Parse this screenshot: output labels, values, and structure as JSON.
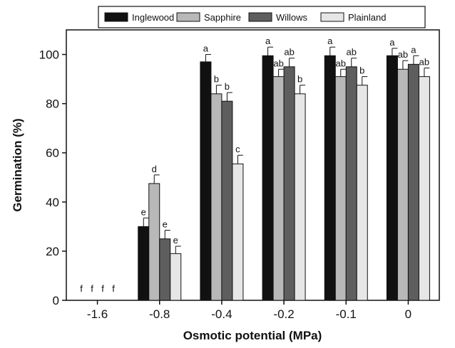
{
  "chart_data": {
    "type": "bar",
    "xlabel": "Osmotic potential (MPa)",
    "ylabel": "Germination (%)",
    "ylim": [
      0,
      110
    ],
    "yticks": [
      0,
      20,
      40,
      60,
      80,
      100
    ],
    "categories": [
      "-1.6",
      "-0.8",
      "-0.4",
      "-0.2",
      "-0.1",
      "0"
    ],
    "legend_position": "top-center",
    "grid": false,
    "series": [
      {
        "name": "Inglewood",
        "color": "#111111",
        "values": [
          0,
          30,
          97,
          99.5,
          99.5,
          99.5
        ],
        "errors": [
          0,
          3.5,
          3,
          3.5,
          3.5,
          3
        ],
        "labels": [
          "f",
          "e",
          "a",
          "a",
          "a",
          "a"
        ]
      },
      {
        "name": "Sapphire",
        "color": "#b8b8b8",
        "values": [
          0,
          47.5,
          84,
          91,
          91,
          94
        ],
        "errors": [
          0,
          3.5,
          3.5,
          3,
          3,
          3.5
        ],
        "labels": [
          "f",
          "d",
          "b",
          "ab",
          "ab",
          "ab"
        ]
      },
      {
        "name": "Willows",
        "color": "#5e5e5e",
        "values": [
          0,
          25,
          81,
          95,
          95,
          96
        ],
        "errors": [
          0,
          3.5,
          3.5,
          3.5,
          3.5,
          3.5
        ],
        "labels": [
          "f",
          "e",
          "b",
          "ab",
          "ab",
          "a"
        ]
      },
      {
        "name": "Plainland",
        "color": "#e6e6e6",
        "values": [
          0,
          19,
          55.5,
          84,
          87.5,
          91
        ],
        "errors": [
          0,
          3,
          3.5,
          3.5,
          3.5,
          3.5
        ],
        "labels": [
          "f",
          "e",
          "c",
          "b",
          "b",
          "ab"
        ]
      }
    ]
  }
}
